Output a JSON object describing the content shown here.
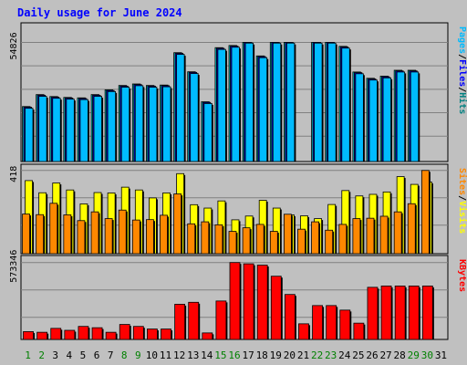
{
  "chart_data": [
    {
      "type": "bar",
      "title": "Daily usage for June 2024",
      "categories": [
        "1",
        "2",
        "3",
        "4",
        "5",
        "6",
        "7",
        "8",
        "9",
        "10",
        "11",
        "12",
        "13",
        "14",
        "15",
        "16",
        "17",
        "18",
        "19",
        "20",
        "21",
        "22",
        "23",
        "24",
        "25",
        "26",
        "27",
        "28",
        "29",
        "30",
        "31"
      ],
      "weekend_days": [
        "1",
        "2",
        "8",
        "9",
        "15",
        "16",
        "22",
        "23",
        "29",
        "30"
      ],
      "y_tick_label": "54826",
      "ylim": [
        0,
        63000
      ],
      "side_labels": [
        {
          "text": "Pages",
          "color": "#00bbff"
        },
        {
          "text": "Files",
          "color": "#0000ff"
        },
        {
          "text": "Hits",
          "color": "#008080"
        }
      ],
      "series": [
        {
          "name": "Hits",
          "color": "#00cccc",
          "values": [
            25300,
            30800,
            29900,
            29500,
            29300,
            30800,
            33000,
            35000,
            35700,
            35000,
            35200,
            50100,
            41300,
            27500,
            52400,
            53400,
            54826,
            48600,
            54826,
            54826,
            0,
            54826,
            54826,
            53000,
            41200,
            38300,
            39300,
            42000,
            42000,
            0,
            0
          ]
        },
        {
          "name": "Files",
          "color": "#0000cc",
          "values": [
            25000,
            30500,
            29600,
            29200,
            29000,
            30500,
            32700,
            34700,
            35400,
            34700,
            34900,
            49800,
            41000,
            27200,
            52100,
            53100,
            54826,
            48300,
            54826,
            54826,
            0,
            54826,
            54826,
            52700,
            40900,
            38000,
            39000,
            41700,
            41700,
            0,
            0
          ]
        },
        {
          "name": "Pages",
          "color": "#00bbff",
          "values": [
            24500,
            30000,
            29100,
            28700,
            28500,
            30000,
            32200,
            34200,
            34900,
            34200,
            34400,
            49300,
            40500,
            26700,
            51600,
            52600,
            54500,
            47800,
            54500,
            54500,
            0,
            54500,
            54500,
            52200,
            40400,
            37500,
            38500,
            41200,
            41200,
            0,
            0
          ]
        }
      ]
    },
    {
      "type": "bar",
      "categories": [
        "1",
        "2",
        "3",
        "4",
        "5",
        "6",
        "7",
        "8",
        "9",
        "10",
        "11",
        "12",
        "13",
        "14",
        "15",
        "16",
        "17",
        "18",
        "19",
        "20",
        "21",
        "22",
        "23",
        "24",
        "25",
        "26",
        "27",
        "28",
        "29",
        "30",
        "31"
      ],
      "y_tick_label": "418",
      "ylim": [
        0,
        440
      ],
      "side_labels": [
        {
          "text": "Sites",
          "color": "#ff8800"
        },
        {
          "text": "Visits",
          "color": "#ffff00"
        }
      ],
      "series": [
        {
          "name": "Visits",
          "color": "#ffff00",
          "values": [
            367,
            306,
            355,
            320,
            250,
            307,
            305,
            334,
            320,
            280,
            305,
            402,
            246,
            229,
            265,
            170,
            189,
            268,
            229,
            195,
            190,
            176,
            247,
            317,
            290,
            298,
            310,
            387,
            348,
            360,
            0
          ]
        },
        {
          "name": "Sites",
          "color": "#ff8800",
          "values": [
            199,
            196,
            253,
            195,
            166,
            210,
            176,
            219,
            169,
            171,
            193,
            300,
            150,
            160,
            145,
            112,
            130,
            147,
            112,
            198,
            123,
            160,
            118,
            147,
            176,
            178,
            188,
            210,
            251,
            418,
            0
          ]
        }
      ]
    },
    {
      "type": "bar",
      "categories": [
        "1",
        "2",
        "3",
        "4",
        "5",
        "6",
        "7",
        "8",
        "9",
        "10",
        "11",
        "12",
        "13",
        "14",
        "15",
        "16",
        "17",
        "18",
        "19",
        "20",
        "21",
        "22",
        "23",
        "24",
        "25",
        "26",
        "27",
        "28",
        "29",
        "30",
        "31"
      ],
      "y_tick_label": "573346",
      "ylim": [
        0,
        630000
      ],
      "side_labels": [
        {
          "text": "KBytes",
          "color": "#ff0000"
        }
      ],
      "series": [
        {
          "name": "KBytes",
          "color": "#ff0000",
          "values": [
            60000,
            55000,
            85000,
            70000,
            100000,
            90000,
            55000,
            115000,
            100000,
            80000,
            80000,
            270000,
            285000,
            50000,
            295000,
            590000,
            580000,
            570000,
            485000,
            345000,
            120000,
            260000,
            260000,
            225000,
            125000,
            400000,
            410000,
            410000,
            410000,
            410000,
            0
          ]
        }
      ]
    }
  ]
}
